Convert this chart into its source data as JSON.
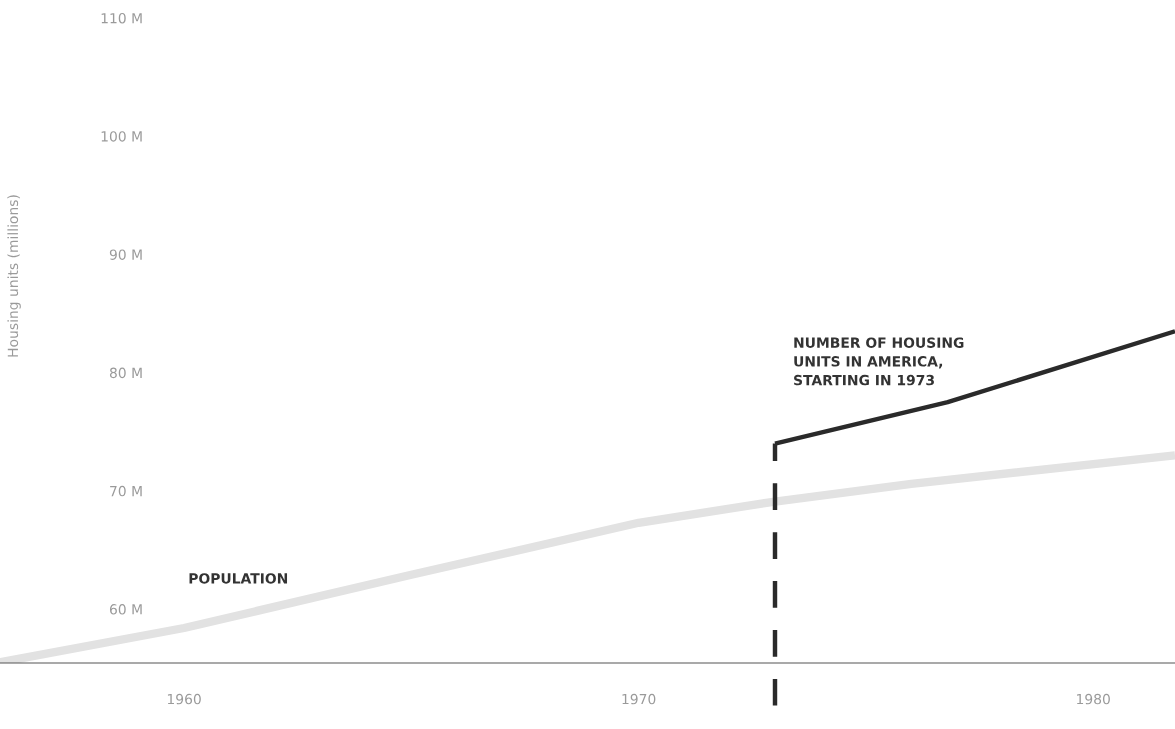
{
  "chart_data": {
    "type": "line",
    "ylabel": "Housing units (millions)",
    "xlim": [
      1955.95,
      1981.8
    ],
    "xticks": [
      1960,
      1970,
      1980
    ],
    "ylim": [
      55.44,
      110
    ],
    "yticks": [
      {
        "value": 60,
        "label": "60 M"
      },
      {
        "value": 70,
        "label": "70 M"
      },
      {
        "value": 80,
        "label": "80 M"
      },
      {
        "value": 90,
        "label": "90 M"
      },
      {
        "value": 100,
        "label": "100 M"
      },
      {
        "value": 110,
        "label": "110 M"
      }
    ],
    "grid": false,
    "legend": false,
    "marker": "none",
    "line_style": "solid",
    "series": [
      {
        "name": "POPULATION",
        "color": "#e2e2e2",
        "x": [
          1955.95,
          1960,
          1965,
          1970,
          1973,
          1976,
          1981.8
        ],
        "values": [
          55.5,
          58.4,
          62.9,
          67.3,
          69.1,
          70.6,
          73.0
        ]
      },
      {
        "name": "NUMBER OF HOUSING\nUNITS IN AMERICA,\nSTARTING IN 1973",
        "color": "#2a2a2a",
        "x": [
          1973,
          1976.8,
          1981.8
        ],
        "values": [
          74.0,
          77.5,
          83.5
        ]
      }
    ],
    "ref_lines": [
      {
        "axis": "x",
        "value": 1973,
        "color": "#2a2a2a",
        "line_style": "dashed"
      }
    ]
  }
}
